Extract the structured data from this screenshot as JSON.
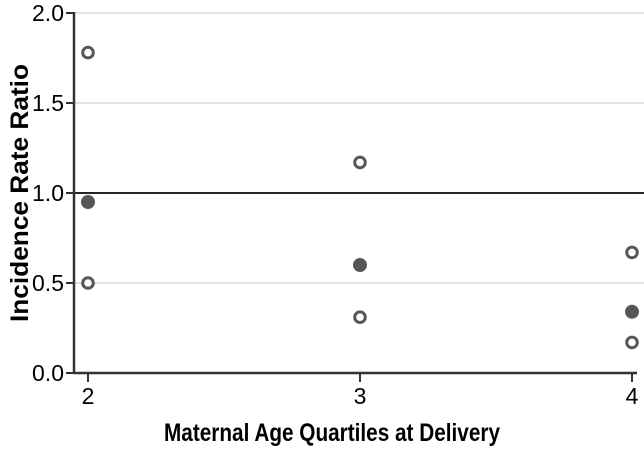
{
  "figure": {
    "background_color": "#ffffff"
  },
  "chart_data": {
    "type": "scatter",
    "title": "",
    "xlabel": "Maternal Age Quartiles at Delivery",
    "ylabel": "Incidence Rate Ratio",
    "xlim": [
      2,
      4
    ],
    "ylim": [
      0.0,
      2.0
    ],
    "x_ticks": [
      2,
      3,
      4
    ],
    "x_tick_labels": [
      "2",
      "3",
      "4"
    ],
    "y_ticks": [
      0.0,
      0.5,
      1.0,
      1.5,
      2.0
    ],
    "y_tick_labels": [
      "0.0",
      "0.5",
      "1.0",
      "1.5",
      "2.0"
    ],
    "grid": "horizontal-light",
    "legend": "none",
    "reference_line_y": 1.0,
    "series": [
      {
        "name": "upper-open-circles",
        "marker": "open",
        "points": [
          {
            "x": 2,
            "y": 1.78
          },
          {
            "x": 3,
            "y": 1.17
          },
          {
            "x": 4,
            "y": 0.67
          }
        ]
      },
      {
        "name": "filled-circles",
        "marker": "filled",
        "points": [
          {
            "x": 2,
            "y": 0.95
          },
          {
            "x": 3,
            "y": 0.6
          },
          {
            "x": 4,
            "y": 0.34
          }
        ]
      },
      {
        "name": "lower-open-circles",
        "marker": "open",
        "points": [
          {
            "x": 2,
            "y": 0.5
          },
          {
            "x": 3,
            "y": 0.31
          },
          {
            "x": 4,
            "y": 0.17
          }
        ]
      }
    ],
    "colors": {
      "marker": "#575757",
      "grid_line": "#d9d9d9",
      "reference_line": "#262626",
      "axis_line": "#333333",
      "text": "#000000"
    }
  }
}
